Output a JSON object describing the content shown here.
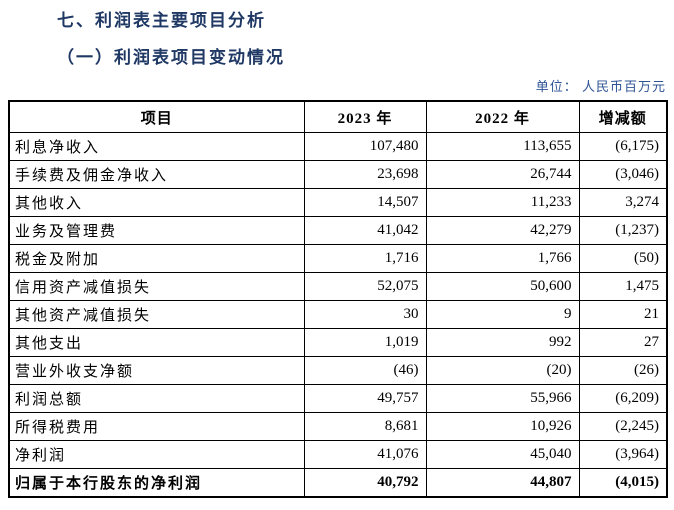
{
  "page": {
    "section_title": "七、利润表主要项目分析",
    "subsection_title": "（一）利润表项目变动情况",
    "unit_note": "单位： 人民币百万元"
  },
  "colors": {
    "heading": "#1f3864",
    "unit_note": "#2f5496",
    "table_text": "#000000",
    "background": "#ffffff"
  },
  "table": {
    "columns": [
      "项目",
      "2023 年",
      "2022 年",
      "增减额"
    ],
    "rows": [
      {
        "item": "利息净收入",
        "y2023": "107,480",
        "y2022": "113,655",
        "change": "(6,175)",
        "bold": false
      },
      {
        "item": "手续费及佣金净收入",
        "y2023": "23,698",
        "y2022": "26,744",
        "change": "(3,046)",
        "bold": false
      },
      {
        "item": "其他收入",
        "y2023": "14,507",
        "y2022": "11,233",
        "change": "3,274",
        "bold": false
      },
      {
        "item": "业务及管理费",
        "y2023": "41,042",
        "y2022": "42,279",
        "change": "(1,237)",
        "bold": false
      },
      {
        "item": "税金及附加",
        "y2023": "1,716",
        "y2022": "1,766",
        "change": "(50)",
        "bold": false
      },
      {
        "item": "信用资产减值损失",
        "y2023": "52,075",
        "y2022": "50,600",
        "change": "1,475",
        "bold": false
      },
      {
        "item": "其他资产减值损失",
        "y2023": "30",
        "y2022": "9",
        "change": "21",
        "bold": false
      },
      {
        "item": "其他支出",
        "y2023": "1,019",
        "y2022": "992",
        "change": "27",
        "bold": false
      },
      {
        "item": "营业外收支净额",
        "y2023": "(46)",
        "y2022": "(20)",
        "change": "(26)",
        "bold": false
      },
      {
        "item": "利润总额",
        "y2023": "49,757",
        "y2022": "55,966",
        "change": "(6,209)",
        "bold": false
      },
      {
        "item": "所得税费用",
        "y2023": "8,681",
        "y2022": "10,926",
        "change": "(2,245)",
        "bold": false
      },
      {
        "item": "净利润",
        "y2023": "41,076",
        "y2022": "45,040",
        "change": "(3,964)",
        "bold": false
      },
      {
        "item": "归属于本行股东的净利润",
        "y2023": "40,792",
        "y2022": "44,807",
        "change": "(4,015)",
        "bold": true
      }
    ]
  }
}
